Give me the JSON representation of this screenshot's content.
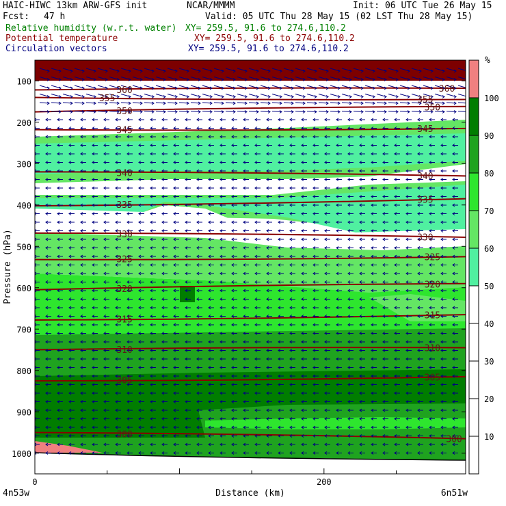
{
  "header": {
    "model_line": "HAIC-HIWC 13km ARW-GFS init",
    "org": "NCAR/MMMM",
    "init": "Init: 06 UTC Tue 26 May 15",
    "fcst_label": "Fcst:",
    "fcst_value": "47 h",
    "valid": "Valid: 05 UTC Thu 28 May 15 (02 LST Thu 28 May 15)",
    "colors": {
      "rh": "#008000",
      "theta": "#8b0000",
      "vectors": "#000080"
    },
    "fields": [
      {
        "name": "Relative humidity (w.r.t. water)",
        "xy": "XY= 259.5, 91.6 to 274.6,110.2"
      },
      {
        "name": "Potential temperature",
        "xy": "XY= 259.5, 91.6 to 274.6,110.2"
      },
      {
        "name": "Circulation vectors",
        "xy": "XY= 259.5, 91.6 to 274.6,110.2"
      }
    ]
  },
  "chart_data": {
    "type": "cross-section contour",
    "xlabel": "Distance (km)",
    "ylabel": "Pressure (hPa)",
    "xlim": [
      0,
      298
    ],
    "ylim": [
      1050,
      50
    ],
    "x_ticks": [
      0,
      200
    ],
    "y_ticks": [
      100,
      200,
      300,
      400,
      500,
      600,
      700,
      800,
      900,
      1000
    ],
    "x_end_labels": [
      "4n53w",
      "6n51w"
    ],
    "colorbar": {
      "unit": "%",
      "levels": [
        10,
        20,
        30,
        40,
        50,
        60,
        70,
        80,
        90,
        100
      ],
      "colors": [
        "#ffffff",
        "#ffffff",
        "#ffffff",
        "#ffffff",
        "#ffffff",
        "#50f0a0",
        "#64e664",
        "#2ee62e",
        "#1fa31f",
        "#007d00",
        "#f08080"
      ]
    },
    "theta_contours": [
      {
        "label": "300",
        "p_left": 950,
        "p_right": 965,
        "labels_x": [
          62,
          290
        ]
      },
      {
        "label": "305",
        "p_left": 825,
        "p_right": 815,
        "labels_x": [
          62,
          275
        ]
      },
      {
        "label": "310",
        "p_left": 750,
        "p_right": 745,
        "labels_x": [
          62,
          275
        ]
      },
      {
        "label": "315",
        "p_left": 678,
        "p_right": 665,
        "labels_x": [
          62,
          275
        ]
      },
      {
        "label": "320",
        "p_left": 605,
        "p_right": 590,
        "labels_x": [
          62,
          275
        ]
      },
      {
        "label": "325",
        "p_left": 532,
        "p_right": 525,
        "labels_x": [
          62,
          275
        ]
      },
      {
        "label": "330",
        "p_left": 468,
        "p_right": 478,
        "labels_x": [
          62,
          270
        ]
      },
      {
        "label": "335",
        "p_left": 402,
        "p_right": 385,
        "labels_x": [
          62,
          270
        ]
      },
      {
        "label": "340",
        "p_left": 320,
        "p_right": 330,
        "labels_x": [
          62,
          270
        ]
      },
      {
        "label": "345",
        "p_left": 218,
        "p_right": 215,
        "labels_x": [
          62,
          270
        ]
      },
      {
        "label": "350",
        "p_left": 175,
        "p_right": 162,
        "labels_x": [
          62,
          275
        ]
      },
      {
        "label": "355",
        "p_left": 140,
        "p_right": 145,
        "labels_x": [
          50,
          270
        ]
      },
      {
        "label": "360",
        "p_left": 122,
        "p_right": 118,
        "labels_x": [
          62,
          285
        ]
      }
    ]
  }
}
